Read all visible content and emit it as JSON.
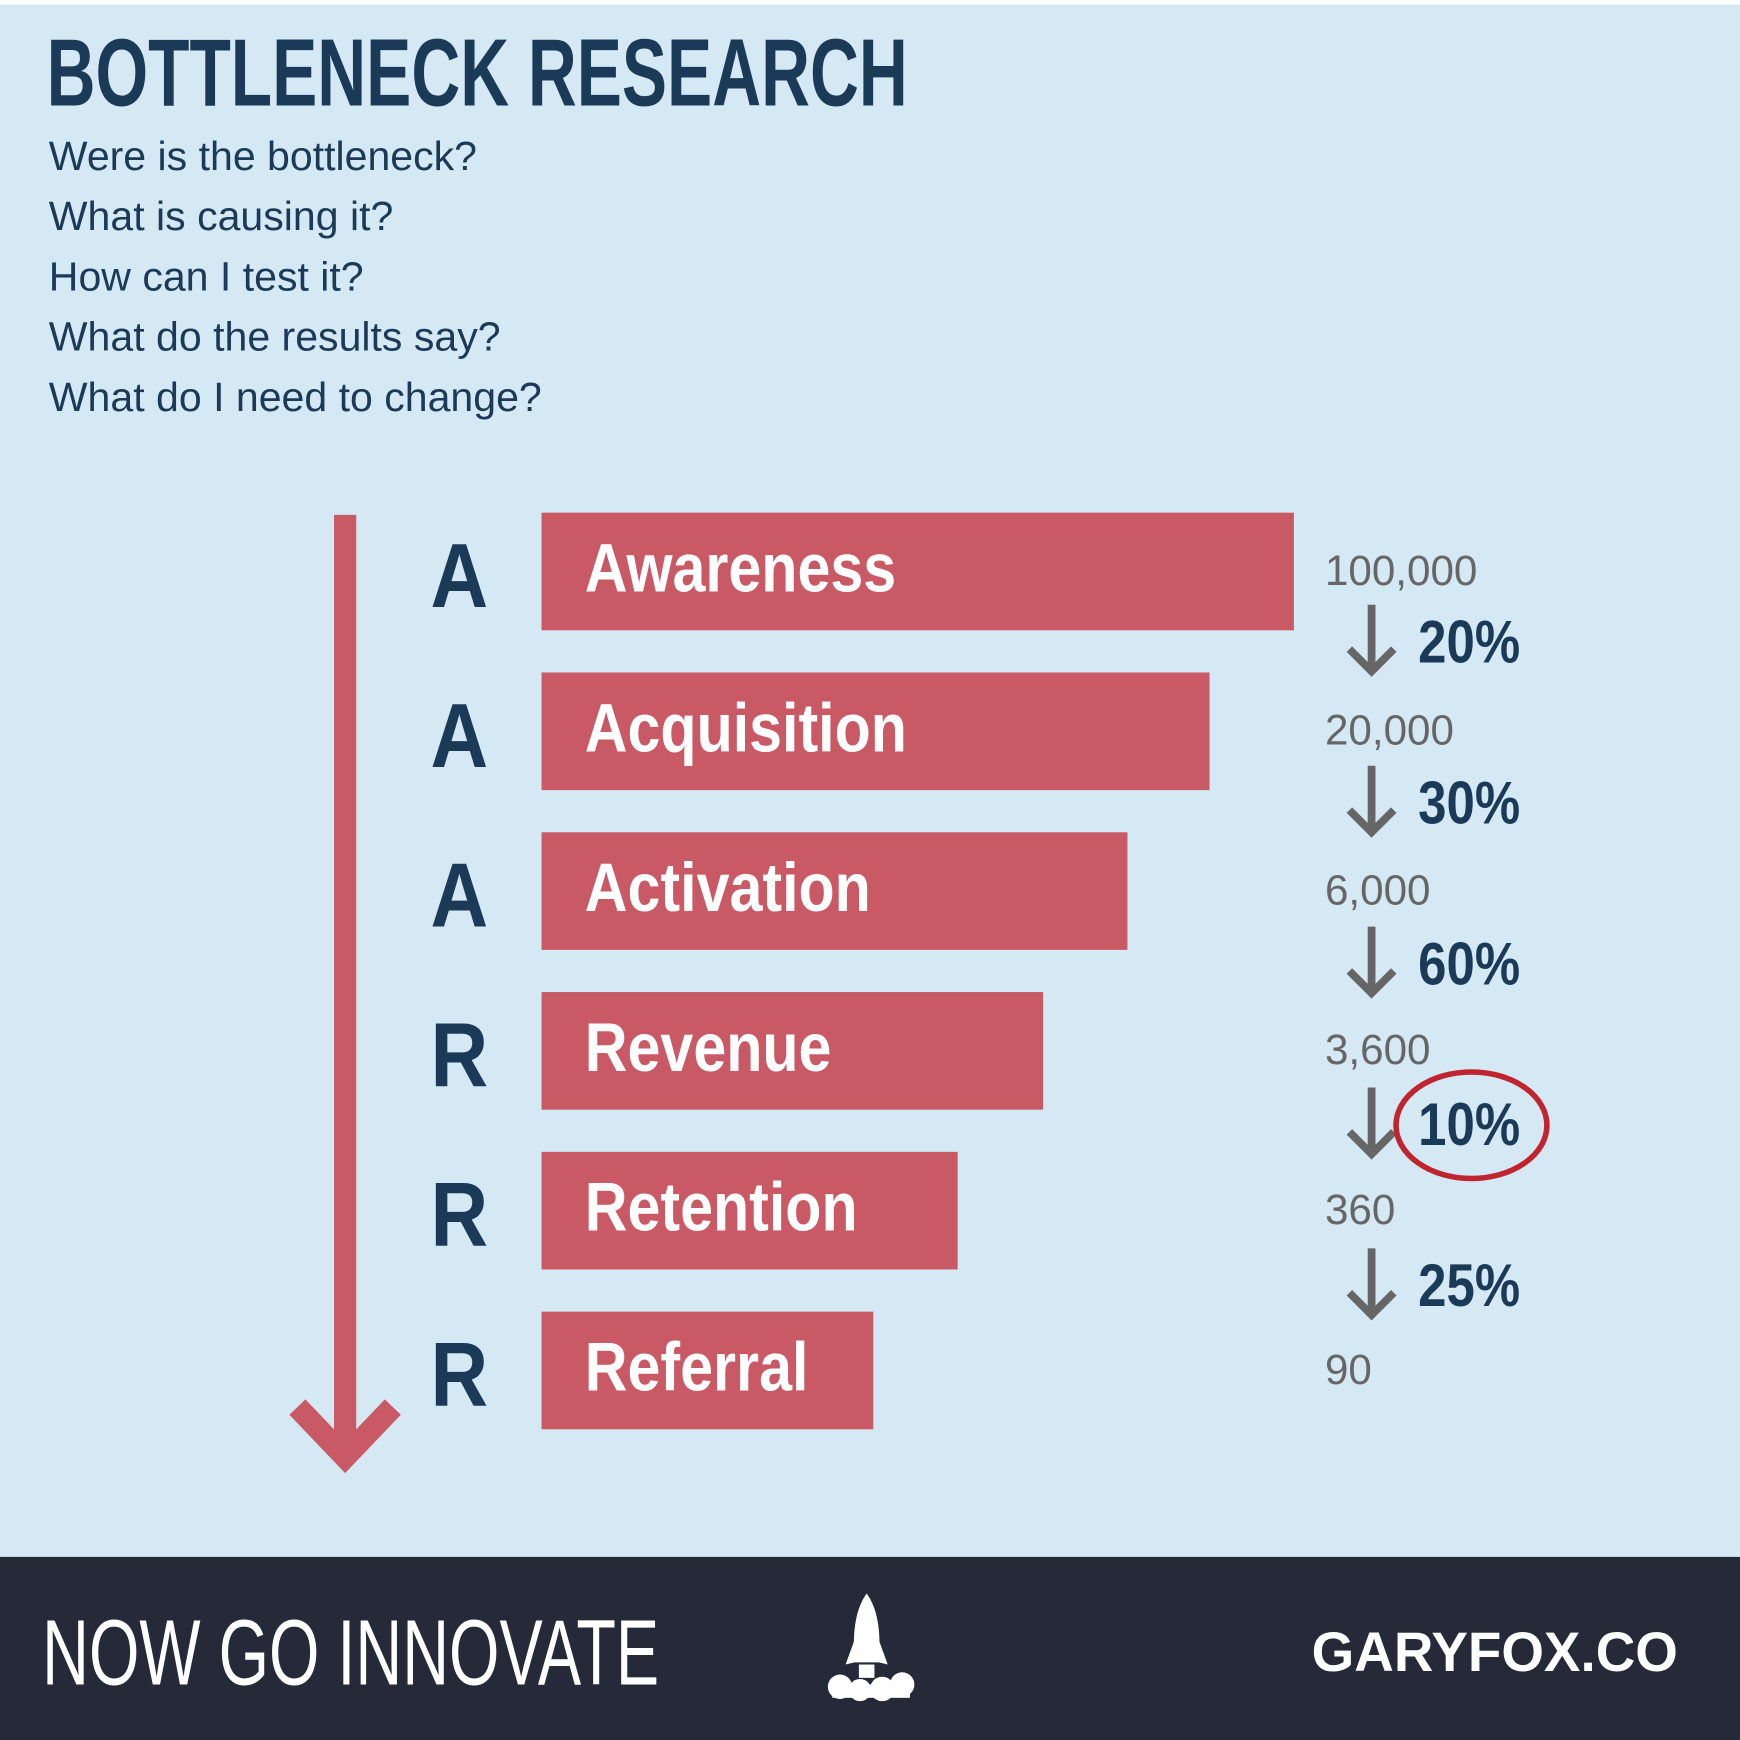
{
  "header": {
    "title": "BOTTLENECK RESEARCH",
    "questions": [
      "Were is the bottleneck?",
      "What is causing it?",
      "How can I test it?",
      "What do the results say?",
      "What do I need to change?"
    ]
  },
  "funnel": {
    "stages": [
      {
        "letter": "A",
        "label": "Awareness",
        "count": "100,000"
      },
      {
        "letter": "A",
        "label": "Acquisition",
        "count": "20,000"
      },
      {
        "letter": "A",
        "label": "Activation",
        "count": "6,000"
      },
      {
        "letter": "R",
        "label": "Revenue",
        "count": "3,600"
      },
      {
        "letter": "R",
        "label": "Retention",
        "count": "360"
      },
      {
        "letter": "R",
        "label": "Referral",
        "count": "90"
      }
    ],
    "conversions": [
      {
        "text": "20%",
        "circled": false
      },
      {
        "text": "30%",
        "circled": false
      },
      {
        "text": "60%",
        "circled": false
      },
      {
        "text": "10%",
        "circled": true
      },
      {
        "text": "25%",
        "circled": false
      }
    ]
  },
  "footer": {
    "slogan": "NOW GO INNOVATE",
    "site": "GARYFOX.CO"
  }
}
